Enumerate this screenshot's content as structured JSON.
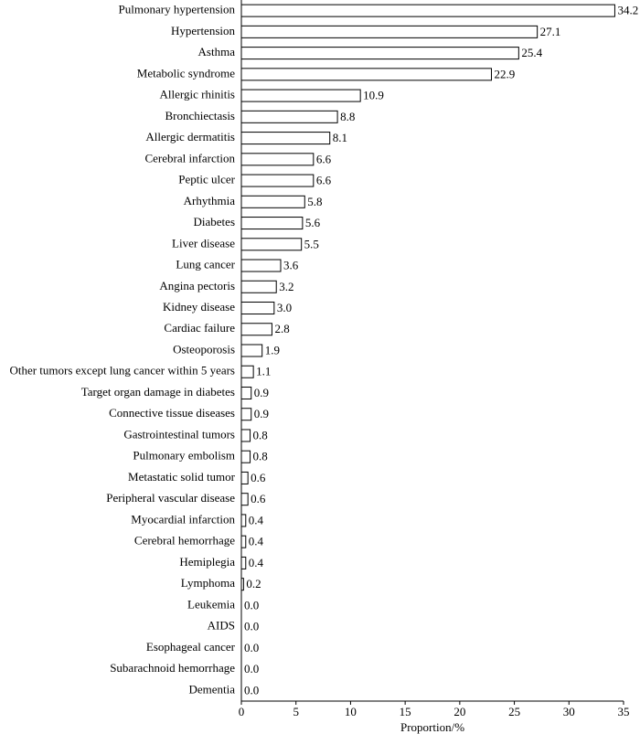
{
  "chart_data": {
    "type": "hbar",
    "categories": [
      "Pulmonary hypertension",
      "Hypertension",
      "Asthma",
      "Metabolic syndrome",
      "Allergic rhinitis",
      "Bronchiectasis",
      "Allergic dermatitis",
      "Cerebral infarction",
      "Peptic ulcer",
      "Arhythmia",
      "Diabetes",
      "Liver disease",
      "Lung cancer",
      "Angina pectoris",
      "Kidney disease",
      "Cardiac failure",
      "Osteoporosis",
      "Other tumors except lung cancer within 5 years",
      "Target organ damage in diabetes",
      "Connective tissue diseases",
      "Gastrointestinal tumors",
      "Pulmonary embolism",
      "Metastatic solid tumor",
      "Peripheral vascular disease",
      "Myocardial infarction",
      "Cerebral hemorrhage",
      "Hemiplegia",
      "Lymphoma",
      "Leukemia",
      "AIDS",
      "Esophageal cancer",
      "Subarachnoid hemorrhage",
      "Dementia"
    ],
    "values": [
      34.2,
      27.1,
      25.4,
      22.9,
      10.9,
      8.8,
      8.1,
      6.6,
      6.6,
      5.8,
      5.6,
      5.5,
      3.6,
      3.2,
      3.0,
      2.8,
      1.9,
      1.1,
      0.9,
      0.9,
      0.8,
      0.8,
      0.6,
      0.6,
      0.4,
      0.4,
      0.4,
      0.2,
      0.0,
      0.0,
      0.0,
      0.0,
      0.0
    ],
    "value_labels": [
      "34.2",
      "27.1",
      "25.4",
      "22.9",
      "10.9",
      "8.8",
      "8.1",
      "6.6",
      "6.6",
      "5.8",
      "5.6",
      "5.5",
      "3.6",
      "3.2",
      "3.0",
      "2.8",
      "1.9",
      "1.1",
      "0.9",
      "0.9",
      "0.8",
      "0.8",
      "0.6",
      "0.6",
      "0.4",
      "0.4",
      "0.4",
      "0.2",
      "0.0",
      "0.0",
      "0.0",
      "0.0",
      "0.0"
    ],
    "color": "#ffffff",
    "xlabel": "Proportion/%",
    "xlim": [
      0,
      35
    ],
    "xticks": [
      0,
      5,
      10,
      15,
      20,
      25,
      30,
      35
    ]
  }
}
